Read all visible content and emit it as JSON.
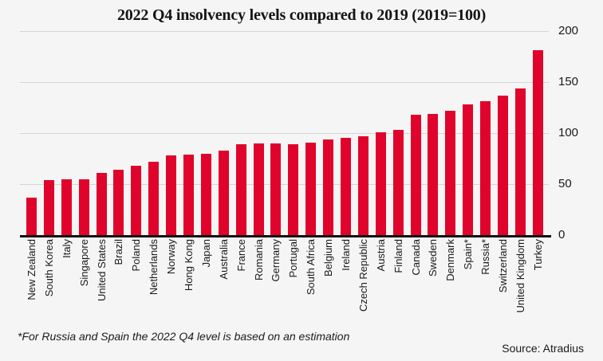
{
  "title": "2022 Q4 insolvency levels compared to 2019 (2019=100)",
  "footnote": "*For Russia and Spain the 2022 Q4 level is based on an estimation",
  "source": "Source: Atradius",
  "colors": {
    "bar": "#e0032b",
    "background": "#f5f5f5",
    "gridline": "#d4d4d4",
    "axis": "#111111",
    "text": "#1a1a1a"
  },
  "chart_data": {
    "type": "bar",
    "title": "2022 Q4 insolvency levels compared to 2019 (2019=100)",
    "categories": [
      "New Zealand",
      "South Korea",
      "Italy",
      "Singapore",
      "United States",
      "Brazil",
      "Poland",
      "Netherlands",
      "Norway",
      "Hong Kong",
      "Japan",
      "Australia",
      "France",
      "Romania",
      "Germany",
      "Portugal",
      "South Africa",
      "Belgium",
      "Ireland",
      "Czech Republic",
      "Austria",
      "Finland",
      "Canada",
      "Sweden",
      "Denmark",
      "Spain*",
      "Russia*",
      "Switzerland",
      "United Kingdom",
      "Turkey"
    ],
    "values": [
      37,
      54,
      55,
      55,
      61,
      64,
      68,
      72,
      78,
      79,
      80,
      83,
      89,
      90,
      90,
      89,
      91,
      94,
      95,
      97,
      101,
      103,
      118,
      119,
      122,
      128,
      131,
      137,
      144,
      181
    ],
    "xlabel": "",
    "ylabel": "",
    "ylim": [
      0,
      200
    ],
    "yticks": [
      0,
      50,
      100,
      150,
      200
    ],
    "y_axis_side": "right",
    "grid": true,
    "legend": false
  }
}
